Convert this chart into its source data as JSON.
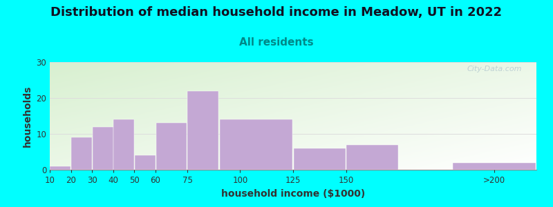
{
  "title": "Distribution of median household income in Meadow, UT in 2022",
  "subtitle": "All residents",
  "xlabel": "household income ($1000)",
  "ylabel": "households",
  "background_outer": "#00FFFF",
  "bar_color": "#C4A8D4",
  "title_fontsize": 13,
  "title_color": "#1a1a2e",
  "subtitle_fontsize": 11,
  "subtitle_color": "#008888",
  "axis_label_fontsize": 10,
  "tick_label_fontsize": 8.5,
  "x_starts": [
    10,
    20,
    30,
    40,
    50,
    60,
    75,
    90,
    125,
    150,
    200
  ],
  "x_widths": [
    10,
    10,
    10,
    10,
    10,
    15,
    15,
    35,
    25,
    25,
    40
  ],
  "values": [
    1,
    9,
    12,
    14,
    4,
    13,
    22,
    14,
    6,
    7,
    2
  ],
  "xtick_positions": [
    10,
    20,
    30,
    40,
    50,
    60,
    75,
    100,
    125,
    150,
    220
  ],
  "xtick_labels": [
    "10",
    "20",
    "30",
    "40",
    "50",
    "60",
    "75",
    "100",
    "125",
    "150",
    ">200"
  ],
  "xlim": [
    10,
    240
  ],
  "ylim": [
    0,
    30
  ],
  "yticks": [
    0,
    10,
    20,
    30
  ],
  "grid_color": "#dddddd",
  "watermark": "City-Data.com"
}
